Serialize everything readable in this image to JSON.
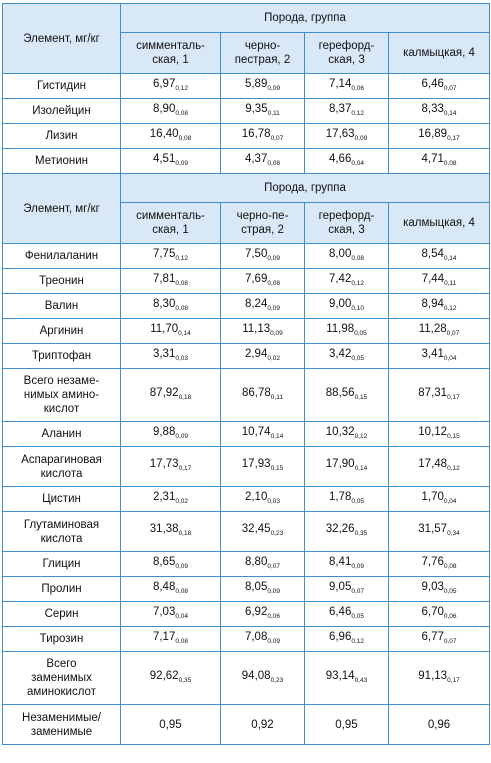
{
  "table": {
    "sections": [
      {
        "header": {
          "element": "Элемент, мг/кг",
          "group": "Порода, группа",
          "columns": [
            "симменталь-\nская, 1",
            "черно-\nпестрая, 2",
            "герефорд-\nская, 3",
            "калмыцкая, 4"
          ]
        },
        "rows": [
          {
            "label": "Гистидин",
            "cells": [
              {
                "value": "6,97",
                "error": "0,12"
              },
              {
                "value": "5,89",
                "error": "0,09"
              },
              {
                "value": "7,14",
                "error": "0,06"
              },
              {
                "value": "6,46",
                "error": "0,07"
              }
            ]
          },
          {
            "label": "Изолейцин",
            "cells": [
              {
                "value": "8,90",
                "error": "0,08"
              },
              {
                "value": "9,35",
                "error": "0,11"
              },
              {
                "value": "8,37",
                "error": "0,12"
              },
              {
                "value": "8,33",
                "error": "0,14"
              }
            ]
          },
          {
            "label": "Лизин",
            "cells": [
              {
                "value": "16,40",
                "error": "0,08"
              },
              {
                "value": "16,78",
                "error": "0,07"
              },
              {
                "value": "17,63",
                "error": "0,09"
              },
              {
                "value": "16,89",
                "error": "0,17"
              }
            ]
          },
          {
            "label": "Метионин",
            "cells": [
              {
                "value": "4,51",
                "error": "0,09"
              },
              {
                "value": "4,37",
                "error": "0,08"
              },
              {
                "value": "4,66",
                "error": "0,04"
              },
              {
                "value": "4,71",
                "error": "0,08"
              }
            ]
          }
        ]
      },
      {
        "header": {
          "element": "Элемент, мг/кг",
          "group": "Порода, группа",
          "columns": [
            "симменталь-\nская, 1",
            "черно-пе-\nстрая, 2",
            "герефорд-\nская, 3",
            "калмыцкая, 4"
          ]
        },
        "rows": [
          {
            "label": "Фенилаланин",
            "cells": [
              {
                "value": "7,75",
                "error": "0,12"
              },
              {
                "value": "7,50",
                "error": "0,09"
              },
              {
                "value": "8,00",
                "error": "0,08"
              },
              {
                "value": "8,54",
                "error": "0,14"
              }
            ]
          },
          {
            "label": "Треонин",
            "cells": [
              {
                "value": "7,81",
                "error": "0,08"
              },
              {
                "value": "7,69",
                "error": "0,08"
              },
              {
                "value": "7,42",
                "error": "0,12"
              },
              {
                "value": "7,44",
                "error": "0,11"
              }
            ]
          },
          {
            "label": "Валин",
            "cells": [
              {
                "value": "8,30",
                "error": "0,08"
              },
              {
                "value": "8,24",
                "error": "0,09"
              },
              {
                "value": "9,00",
                "error": "0,10"
              },
              {
                "value": "8,94",
                "error": "0,12"
              }
            ]
          },
          {
            "label": "Аргинин",
            "cells": [
              {
                "value": "11,70",
                "error": "0,14"
              },
              {
                "value": "11,13",
                "error": "0,09"
              },
              {
                "value": "11,98",
                "error": "0,05"
              },
              {
                "value": "11,28",
                "error": "0,07"
              }
            ]
          },
          {
            "label": "Триптофан",
            "cells": [
              {
                "value": "3,31",
                "error": "0,03"
              },
              {
                "value": "2,94",
                "error": "0,02"
              },
              {
                "value": "3,42",
                "error": "0,05"
              },
              {
                "value": "3,41",
                "error": "0,04"
              }
            ]
          },
          {
            "label": "Всего незаме-\nнимых амино-\nкислот",
            "cells": [
              {
                "value": "87,92",
                "error": "0,18"
              },
              {
                "value": "86,78",
                "error": "0,11"
              },
              {
                "value": "88,56",
                "error": "0,15"
              },
              {
                "value": "87,31",
                "error": "0,17"
              }
            ]
          },
          {
            "label": "Аланин",
            "cells": [
              {
                "value": "9,88",
                "error": "0,09"
              },
              {
                "value": "10,74",
                "error": "0,14"
              },
              {
                "value": "10,32",
                "error": "0,12"
              },
              {
                "value": "10,12",
                "error": "0,15"
              }
            ]
          },
          {
            "label": "Аспарагиновая\nкислота",
            "cells": [
              {
                "value": "17,73",
                "error": "0,17"
              },
              {
                "value": "17,93",
                "error": "0,15"
              },
              {
                "value": "17,90",
                "error": "0,14"
              },
              {
                "value": "17,48",
                "error": "0,12"
              }
            ]
          },
          {
            "label": "Цистин",
            "cells": [
              {
                "value": "2,31",
                "error": "0,02"
              },
              {
                "value": "2,10",
                "error": "0,03"
              },
              {
                "value": "1,78",
                "error": "0,05"
              },
              {
                "value": "1,70",
                "error": "0,04"
              }
            ]
          },
          {
            "label": "Глутаминовая\nкислота",
            "cells": [
              {
                "value": "31,38",
                "error": "0,18"
              },
              {
                "value": "32,45",
                "error": "0,23"
              },
              {
                "value": "32,26",
                "error": "0,35"
              },
              {
                "value": "31,57",
                "error": "0,34"
              }
            ]
          },
          {
            "label": "Глицин",
            "cells": [
              {
                "value": "8,65",
                "error": "0,09"
              },
              {
                "value": "8,80",
                "error": "0,07"
              },
              {
                "value": "8,41",
                "error": "0,09"
              },
              {
                "value": "7,76",
                "error": "0,08"
              }
            ]
          },
          {
            "label": "Пролин",
            "cells": [
              {
                "value": "8,48",
                "error": "0,08"
              },
              {
                "value": "8,05",
                "error": "0,09"
              },
              {
                "value": "9,05",
                "error": "0,07"
              },
              {
                "value": "9,03",
                "error": "0,05"
              }
            ]
          },
          {
            "label": "Серин",
            "cells": [
              {
                "value": "7,03",
                "error": "0,04"
              },
              {
                "value": "6,92",
                "error": "0,06"
              },
              {
                "value": "6,46",
                "error": "0,05"
              },
              {
                "value": "6,70",
                "error": "0,06"
              }
            ]
          },
          {
            "label": "Тирозин",
            "cells": [
              {
                "value": "7,17",
                "error": "0,08"
              },
              {
                "value": "7,08",
                "error": "0,09"
              },
              {
                "value": "6,96",
                "error": "0,12"
              },
              {
                "value": "6,77",
                "error": "0,07"
              }
            ]
          },
          {
            "label": "Всего\nзаменимых\nаминокислот",
            "cells": [
              {
                "value": "92,62",
                "error": "0,35"
              },
              {
                "value": "94,08",
                "error": "0,23"
              },
              {
                "value": "93,14",
                "error": "0,43"
              },
              {
                "value": "91,13",
                "error": "0,17"
              }
            ]
          },
          {
            "label": "Незаменимые/\nзаменимые",
            "cells": [
              "0,95",
              "0,92",
              "0,95",
              "0,96"
            ]
          }
        ]
      }
    ]
  }
}
